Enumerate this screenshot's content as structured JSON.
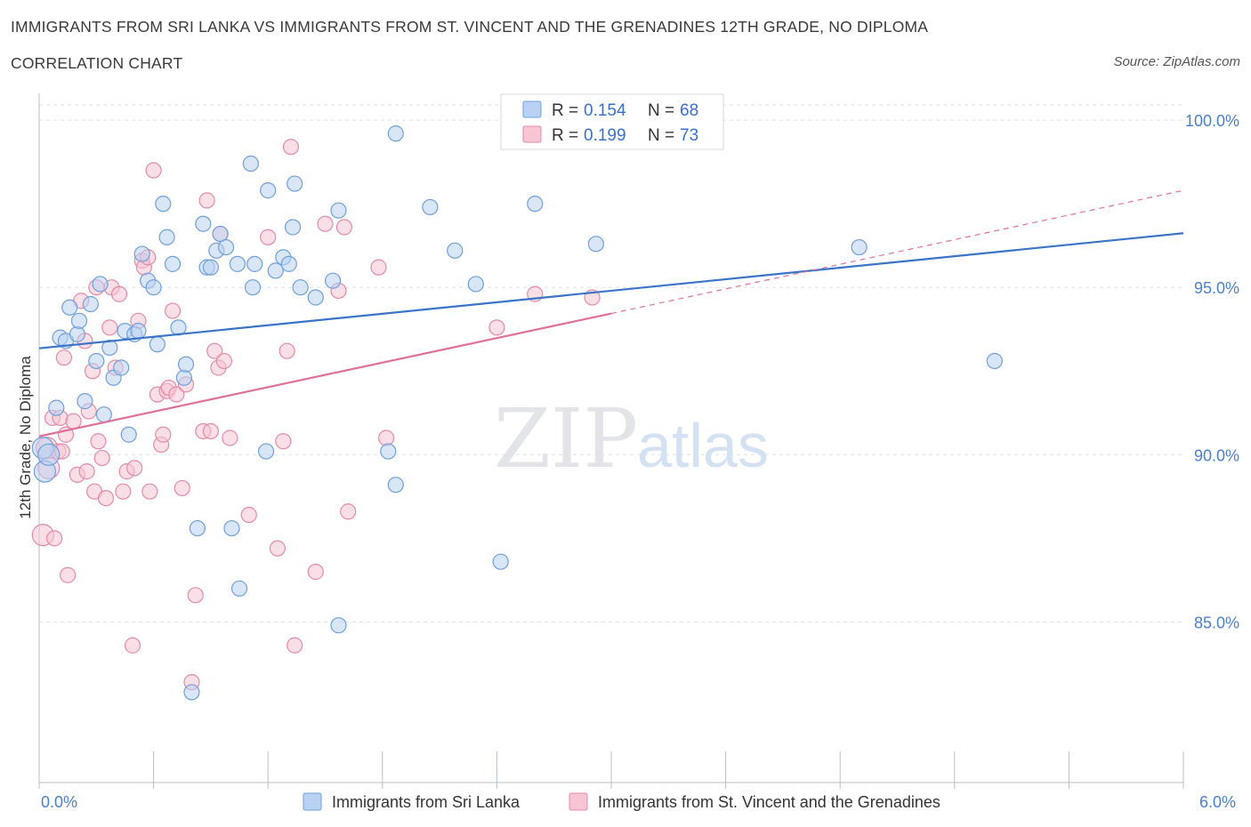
{
  "title": "IMMIGRANTS FROM SRI LANKA VS IMMIGRANTS FROM ST. VINCENT AND THE GRENADINES 12TH GRADE, NO DIPLOMA",
  "subtitle": "CORRELATION CHART",
  "source": "Source: ZipAtlas.com",
  "watermark": {
    "zip": "ZIP",
    "atlas": "atlas"
  },
  "colors": {
    "blue_fill": "#b9d1f3",
    "blue_stroke": "#6f9fdc",
    "blue_line": "#3a74c9",
    "pink_fill": "#f7c5d4",
    "pink_stroke": "#e48aa8",
    "pink_line": "#e0709a",
    "tick_label": "#4a7fd0",
    "grid": "#dde3ea"
  },
  "legend": {
    "rows": [
      {
        "r_label": "R =",
        "r_value": "0.154",
        "n_label": "N =",
        "n_value": "68"
      },
      {
        "r_label": "R =",
        "r_value": "0.199",
        "n_label": "N =",
        "n_value": "73"
      }
    ]
  },
  "chart_data": {
    "type": "scatter",
    "ylabel": "12th Grade, No Diploma",
    "xlabel": "",
    "xlim": [
      0,
      6
    ],
    "ylim": [
      80.2,
      100.8
    ],
    "x_tick_labels": [
      "0.0%",
      "6.0%"
    ],
    "y_ticks": [
      85,
      90,
      95,
      100
    ],
    "y_tick_labels": [
      "85.0%",
      "90.0%",
      "95.0%",
      "100.0%"
    ],
    "grid": true,
    "legend_position": "top-center",
    "series": [
      {
        "name": "Immigrants from Sri Lanka",
        "color": "blue",
        "trend": {
          "x": [
            0,
            6
          ],
          "y": [
            93.18,
            96.62
          ]
        },
        "points": [
          [
            0.02,
            90.2
          ],
          [
            0.03,
            89.5
          ],
          [
            0.05,
            90.0
          ],
          [
            0.09,
            91.4
          ],
          [
            0.11,
            93.5
          ],
          [
            0.14,
            93.4
          ],
          [
            0.16,
            94.4
          ],
          [
            0.2,
            93.6
          ],
          [
            0.21,
            94.0
          ],
          [
            0.24,
            91.6
          ],
          [
            0.27,
            94.5
          ],
          [
            0.3,
            92.8
          ],
          [
            0.32,
            95.1
          ],
          [
            0.34,
            91.2
          ],
          [
            0.37,
            93.2
          ],
          [
            0.39,
            92.3
          ],
          [
            0.43,
            92.6
          ],
          [
            0.45,
            93.7
          ],
          [
            0.47,
            90.6
          ],
          [
            0.5,
            93.6
          ],
          [
            0.52,
            93.7
          ],
          [
            0.54,
            96.0
          ],
          [
            0.57,
            95.2
          ],
          [
            0.6,
            95.0
          ],
          [
            0.62,
            93.3
          ],
          [
            0.65,
            97.5
          ],
          [
            0.67,
            96.5
          ],
          [
            0.7,
            95.7
          ],
          [
            0.73,
            93.8
          ],
          [
            0.76,
            92.3
          ],
          [
            0.77,
            92.7
          ],
          [
            0.83,
            87.8
          ],
          [
            0.86,
            96.9
          ],
          [
            0.88,
            95.6
          ],
          [
            0.9,
            95.6
          ],
          [
            0.93,
            96.1
          ],
          [
            0.95,
            96.6
          ],
          [
            0.98,
            96.2
          ],
          [
            1.01,
            87.8
          ],
          [
            1.04,
            95.7
          ],
          [
            1.05,
            86.0
          ],
          [
            1.11,
            98.7
          ],
          [
            1.12,
            95.0
          ],
          [
            1.13,
            95.7
          ],
          [
            1.19,
            90.1
          ],
          [
            1.2,
            97.9
          ],
          [
            1.24,
            95.5
          ],
          [
            1.28,
            95.9
          ],
          [
            1.31,
            95.7
          ],
          [
            1.33,
            96.8
          ],
          [
            1.34,
            98.1
          ],
          [
            1.37,
            95.0
          ],
          [
            1.45,
            94.7
          ],
          [
            1.54,
            95.2
          ],
          [
            1.57,
            97.3
          ],
          [
            1.57,
            84.9
          ],
          [
            1.83,
            90.1
          ],
          [
            1.87,
            99.6
          ],
          [
            1.87,
            89.1
          ],
          [
            2.05,
            97.4
          ],
          [
            2.18,
            96.1
          ],
          [
            2.29,
            95.1
          ],
          [
            2.42,
            86.8
          ],
          [
            2.6,
            97.5
          ],
          [
            2.92,
            96.3
          ],
          [
            0.8,
            82.9
          ],
          [
            4.3,
            96.2
          ],
          [
            5.01,
            92.8
          ]
        ]
      },
      {
        "name": "Immigrants from St. Vincent and the Grenadines",
        "color": "pink",
        "trend": {
          "x": [
            0,
            3.0
          ],
          "y": [
            90.55,
            94.22
          ]
        },
        "trend_dashed": {
          "x": [
            3.0,
            6
          ],
          "y": [
            94.22,
            97.9
          ]
        },
        "points": [
          [
            0.02,
            87.6
          ],
          [
            0.04,
            90.2
          ],
          [
            0.05,
            89.6
          ],
          [
            0.07,
            91.1
          ],
          [
            0.08,
            87.5
          ],
          [
            0.1,
            90.1
          ],
          [
            0.11,
            91.1
          ],
          [
            0.12,
            90.1
          ],
          [
            0.13,
            92.9
          ],
          [
            0.14,
            90.6
          ],
          [
            0.15,
            86.4
          ],
          [
            0.18,
            91.0
          ],
          [
            0.2,
            89.4
          ],
          [
            0.22,
            94.6
          ],
          [
            0.24,
            93.4
          ],
          [
            0.25,
            89.5
          ],
          [
            0.26,
            91.3
          ],
          [
            0.28,
            92.5
          ],
          [
            0.29,
            88.9
          ],
          [
            0.3,
            95.0
          ],
          [
            0.31,
            90.4
          ],
          [
            0.33,
            89.9
          ],
          [
            0.35,
            88.7
          ],
          [
            0.37,
            93.8
          ],
          [
            0.38,
            95.0
          ],
          [
            0.4,
            92.6
          ],
          [
            0.42,
            94.8
          ],
          [
            0.44,
            88.9
          ],
          [
            0.46,
            89.5
          ],
          [
            0.49,
            84.3
          ],
          [
            0.5,
            89.6
          ],
          [
            0.52,
            94.0
          ],
          [
            0.54,
            95.8
          ],
          [
            0.55,
            95.6
          ],
          [
            0.57,
            95.9
          ],
          [
            0.58,
            88.9
          ],
          [
            0.6,
            98.5
          ],
          [
            0.62,
            91.8
          ],
          [
            0.64,
            90.3
          ],
          [
            0.65,
            90.6
          ],
          [
            0.67,
            91.9
          ],
          [
            0.68,
            92.0
          ],
          [
            0.7,
            94.3
          ],
          [
            0.72,
            91.8
          ],
          [
            0.75,
            89.0
          ],
          [
            0.77,
            92.1
          ],
          [
            0.8,
            83.2
          ],
          [
            0.82,
            85.8
          ],
          [
            0.86,
            90.7
          ],
          [
            0.88,
            97.6
          ],
          [
            0.9,
            90.7
          ],
          [
            0.92,
            93.1
          ],
          [
            0.94,
            92.6
          ],
          [
            0.95,
            96.6
          ],
          [
            0.97,
            92.8
          ],
          [
            1.0,
            90.5
          ],
          [
            1.1,
            88.2
          ],
          [
            1.2,
            96.5
          ],
          [
            1.25,
            87.2
          ],
          [
            1.28,
            90.4
          ],
          [
            1.3,
            93.1
          ],
          [
            1.32,
            99.2
          ],
          [
            1.34,
            84.3
          ],
          [
            1.45,
            86.5
          ],
          [
            1.5,
            96.9
          ],
          [
            1.57,
            94.9
          ],
          [
            1.6,
            96.8
          ],
          [
            1.62,
            88.3
          ],
          [
            1.78,
            95.6
          ],
          [
            1.82,
            90.5
          ],
          [
            2.4,
            93.8
          ],
          [
            2.6,
            94.8
          ],
          [
            2.9,
            94.7
          ]
        ]
      }
    ]
  },
  "bottom_legend": [
    {
      "label": "Immigrants from Sri Lanka"
    },
    {
      "label": "Immigrants from St. Vincent and the Grenadines"
    }
  ]
}
